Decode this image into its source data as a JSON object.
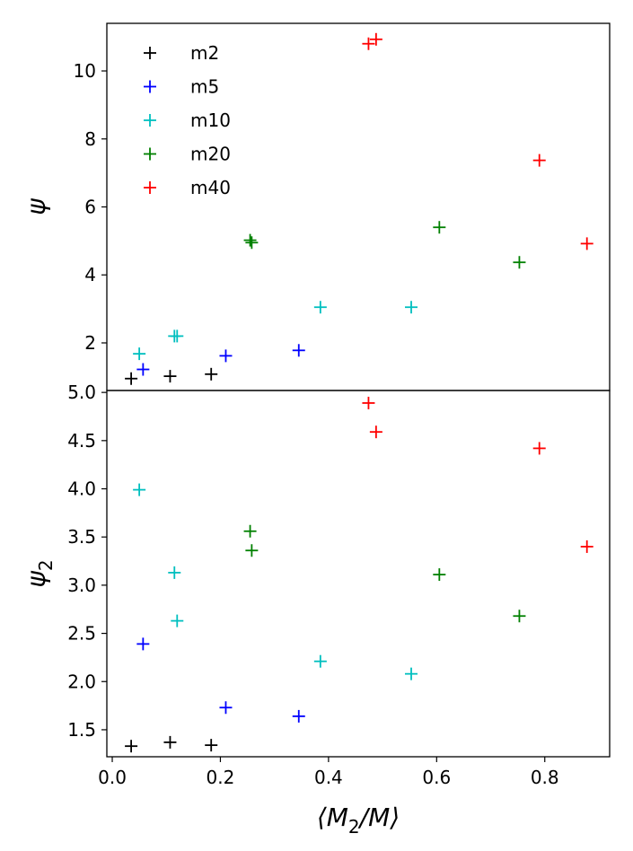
{
  "chart_data": {
    "type": "scatter",
    "shared_x": {
      "label_main": "⟨M",
      "label_sub": "2",
      "label_tail": "/M⟩",
      "xlim": [
        -0.01,
        0.92
      ],
      "ticks": [
        0.0,
        0.2,
        0.4,
        0.6,
        0.8
      ],
      "tick_labels": [
        "0.0",
        "0.2",
        "0.4",
        "0.6",
        "0.8"
      ]
    },
    "legend": {
      "placement": "top-left",
      "panel": "top"
    },
    "panels": [
      {
        "id": "top",
        "ylabel_main": "ψ",
        "ylabel_sub": "",
        "ylim": [
          0.6,
          11.4
        ],
        "yticks": [
          2,
          4,
          6,
          8,
          10
        ],
        "ytick_labels": [
          "2",
          "4",
          "6",
          "8",
          "10"
        ],
        "series": [
          {
            "name": "m2",
            "color": "#000000",
            "x": [
              0.035,
              0.107,
              0.183
            ],
            "y": [
              0.95,
              1.02,
              1.08
            ]
          },
          {
            "name": "m5",
            "color": "#0000ff",
            "x": [
              0.057,
              0.21,
              0.345
            ],
            "y": [
              1.22,
              1.62,
              1.78
            ]
          },
          {
            "name": "m10",
            "color": "#00bfbf",
            "x": [
              0.05,
              0.115,
              0.12,
              0.385,
              0.553
            ],
            "y": [
              1.68,
              2.2,
              2.2,
              3.05,
              3.05
            ]
          },
          {
            "name": "m20",
            "color": "#008000",
            "x": [
              0.255,
              0.258,
              0.605,
              0.753
            ],
            "y": [
              5.02,
              4.95,
              5.4,
              4.37
            ]
          },
          {
            "name": "m40",
            "color": "#ff0000",
            "x": [
              0.474,
              0.488,
              0.79,
              0.878
            ],
            "y": [
              10.8,
              10.93,
              7.37,
              4.92
            ]
          }
        ]
      },
      {
        "id": "bottom",
        "ylabel_main": "ψ",
        "ylabel_sub": "2",
        "ylim": [
          1.22,
          5.02
        ],
        "yticks": [
          1.5,
          2.0,
          2.5,
          3.0,
          3.5,
          4.0,
          4.5,
          5.0
        ],
        "ytick_labels": [
          "1.5",
          "2.0",
          "2.5",
          "3.0",
          "3.5",
          "4.0",
          "4.5",
          "5.0"
        ],
        "series": [
          {
            "name": "m2",
            "color": "#000000",
            "x": [
              0.035,
              0.107,
              0.183
            ],
            "y": [
              1.33,
              1.37,
              1.34
            ]
          },
          {
            "name": "m5",
            "color": "#0000ff",
            "x": [
              0.057,
              0.21,
              0.345
            ],
            "y": [
              2.39,
              1.73,
              1.64
            ]
          },
          {
            "name": "m10",
            "color": "#00bfbf",
            "x": [
              0.05,
              0.115,
              0.12,
              0.385,
              0.553
            ],
            "y": [
              3.99,
              3.13,
              2.63,
              2.21,
              2.08
            ]
          },
          {
            "name": "m20",
            "color": "#008000",
            "x": [
              0.255,
              0.258,
              0.605,
              0.753
            ],
            "y": [
              3.56,
              3.36,
              3.11,
              2.68
            ]
          },
          {
            "name": "m40",
            "color": "#ff0000",
            "x": [
              0.474,
              0.488,
              0.79,
              0.878
            ],
            "y": [
              4.89,
              4.59,
              4.42,
              3.4
            ]
          }
        ]
      }
    ]
  }
}
